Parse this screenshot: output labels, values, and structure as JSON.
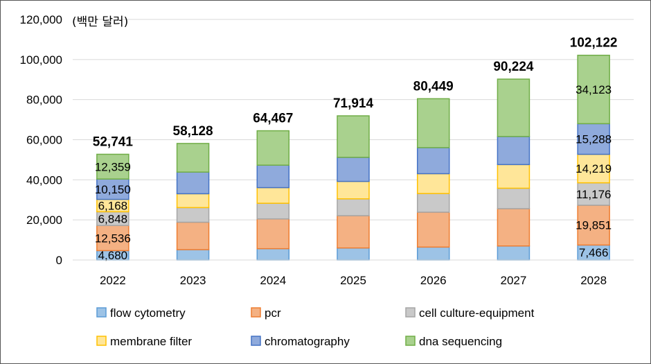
{
  "chart_data": {
    "type": "bar",
    "stacked": true,
    "unit_label": "(백만 달러)",
    "categories": [
      "2022",
      "2023",
      "2024",
      "2025",
      "2026",
      "2027",
      "2028"
    ],
    "ylim": [
      0,
      120000
    ],
    "yticks": [
      0,
      20000,
      40000,
      60000,
      80000,
      100000,
      120000
    ],
    "ytick_labels": [
      "0",
      "20,000",
      "40,000",
      "60,000",
      "80,000",
      "100,000",
      "120,000"
    ],
    "totals": [
      52741,
      58128,
      64467,
      71914,
      80449,
      90224,
      102122
    ],
    "total_labels": [
      "52,741",
      "58,128",
      "64,467",
      "71,914",
      "80,449",
      "90,224",
      "102,122"
    ],
    "series": [
      {
        "name": "flow cytometry",
        "fill": "#9DC3E6",
        "stroke": "#5B9BD5",
        "values": [
          4680,
          5150,
          5650,
          6000,
          6450,
          7000,
          7466
        ],
        "labels": {
          "0": "4,680",
          "6": "7,466"
        }
      },
      {
        "name": "pcr",
        "fill": "#F4B183",
        "stroke": "#ED7D31",
        "values": [
          12536,
          13700,
          14850,
          16100,
          17400,
          18600,
          19851
        ],
        "labels": {
          "0": "12,536",
          "6": "19,851"
        }
      },
      {
        "name": "cell culture-equipment",
        "fill": "#C9C9C9",
        "stroke": "#A5A5A5",
        "values": [
          6848,
          7300,
          7800,
          8400,
          9300,
          10200,
          11176
        ],
        "labels": {
          "0": "6,848",
          "6": "11,176"
        }
      },
      {
        "name": "membrane filter",
        "fill": "#FFE699",
        "stroke": "#FFC000",
        "values": [
          6168,
          6900,
          7800,
          8700,
          9900,
          11800,
          14219
        ],
        "labels": {
          "0": "6,168",
          "6": "14,219"
        }
      },
      {
        "name": "chromatography",
        "fill": "#8FAADC",
        "stroke": "#4472C4",
        "values": [
          10150,
          10800,
          11200,
          12000,
          13000,
          14000,
          15288
        ],
        "labels": {
          "0": "10,150",
          "6": "15,288"
        }
      },
      {
        "name": "dna sequencing",
        "fill": "#A9D18E",
        "stroke": "#70AD47",
        "values": [
          12359,
          14278,
          17167,
          20714,
          24399,
          28624,
          34123
        ],
        "labels": {
          "0": "12,359",
          "6": "34,123"
        }
      }
    ],
    "legend": "bottom"
  }
}
